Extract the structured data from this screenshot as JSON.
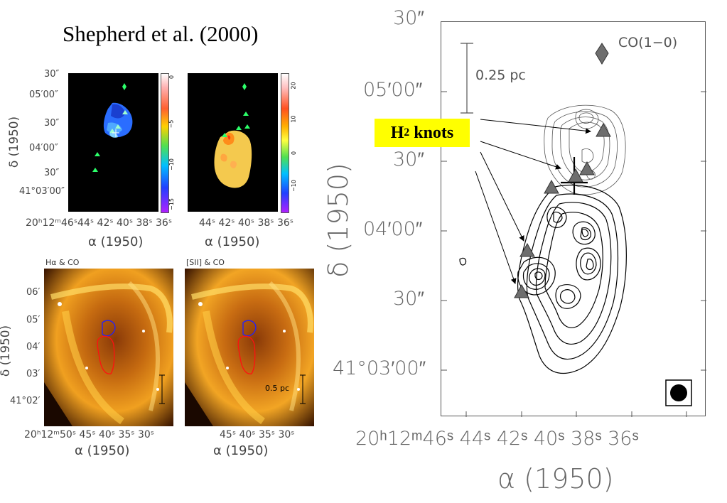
{
  "title": "Shepherd et al. (2000)",
  "small_panels": {
    "dec_ticks": [
      "30″",
      "05′00″",
      "30″",
      "04′00″",
      "30″",
      "41°03′00″"
    ],
    "ra_ticks_left": "20ʰ12ᵐ46ˢ44ˢ 42ˢ 40ˢ 38ˢ 36ˢ",
    "ra_ticks_right": "44ˢ 42ˢ 40ˢ 38ˢ 36ˢ",
    "ra_label": "α (1950)",
    "dec_label": "δ (1950)",
    "colorbar_left": [
      "0",
      "−5",
      "−10",
      "−15"
    ],
    "colorbar_right": [
      "20",
      "10",
      "0",
      "−10"
    ]
  },
  "image_panels": {
    "left_title": "Hα & CO",
    "right_title": "[SII] & CO",
    "dec_ticks": [
      "06′",
      "05′",
      "04′",
      "03′",
      "41°02′"
    ],
    "ra_ticks_left": "20ʰ12ᵐ50ˢ 45ˢ 40ˢ 35ˢ 30ˢ",
    "ra_ticks_right": "45ˢ 40ˢ 35ˢ 30ˢ",
    "ra_label": "α (1950)",
    "dec_label": "δ (1950)",
    "scale_label": "0.5 pc"
  },
  "main_map": {
    "dec_ticks": [
      "30″",
      "05′00″",
      "30″",
      "04′00″",
      "30″",
      "41°03′00″"
    ],
    "ra_ticks": "20ʰ12ᵐ46ˢ 44ˢ 42ˢ 40ˢ 38ˢ 36ˢ",
    "ra_label": "α (1950)",
    "dec_label": "δ (1950)",
    "line_label": "CO(1−0)",
    "scale_label": "0.25 pc",
    "h2_label_main": "H",
    "h2_label_sub": "2",
    "h2_label_rest": " knots"
  }
}
